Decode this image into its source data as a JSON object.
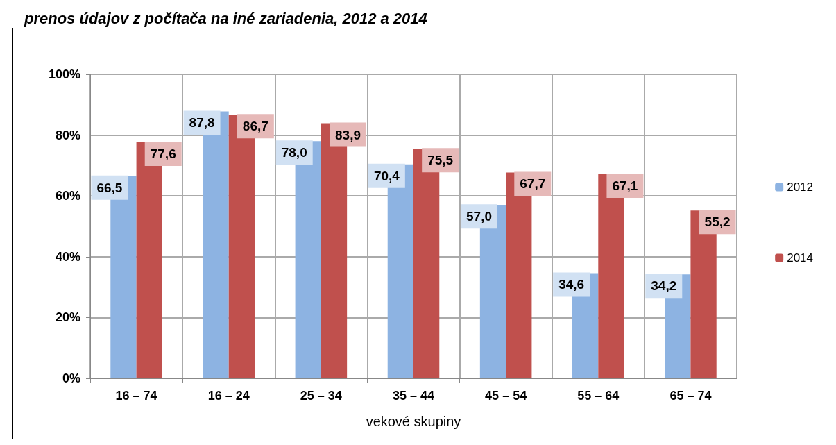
{
  "chart_data": {
    "type": "bar",
    "title": "prenos údajov z počítača na iné zariadenia, 2012 a 2014",
    "xlabel": "vekové skupiny",
    "categories": [
      "16 – 74",
      "16 – 24",
      "25 – 34",
      "35 – 44",
      "45 – 54",
      "55 – 64",
      "65 – 74"
    ],
    "series": [
      {
        "name": "2012",
        "color": "#8db3e2",
        "values": [
          66.5,
          87.8,
          78.0,
          70.4,
          57.0,
          34.6,
          34.2
        ],
        "value_labels": [
          "66,5",
          "87,8",
          "78,0",
          "70,4",
          "57,0",
          "34,6",
          "34,2"
        ]
      },
      {
        "name": "2014",
        "color": "#c0504d",
        "values": [
          77.6,
          86.7,
          83.9,
          75.5,
          67.7,
          67.1,
          55.2
        ],
        "value_labels": [
          "77,6",
          "86,7",
          "83,9",
          "75,5",
          "67,7",
          "67,1",
          "55,2"
        ]
      }
    ],
    "ylim": [
      0,
      100
    ],
    "yticks": [
      {
        "value": 0,
        "label": "0%"
      },
      {
        "value": 20,
        "label": "20%"
      },
      {
        "value": 40,
        "label": "40%"
      },
      {
        "value": 60,
        "label": "60%"
      },
      {
        "value": 80,
        "label": "80%"
      },
      {
        "value": 100,
        "label": "100%"
      }
    ],
    "grid": true,
    "legend": "right"
  }
}
